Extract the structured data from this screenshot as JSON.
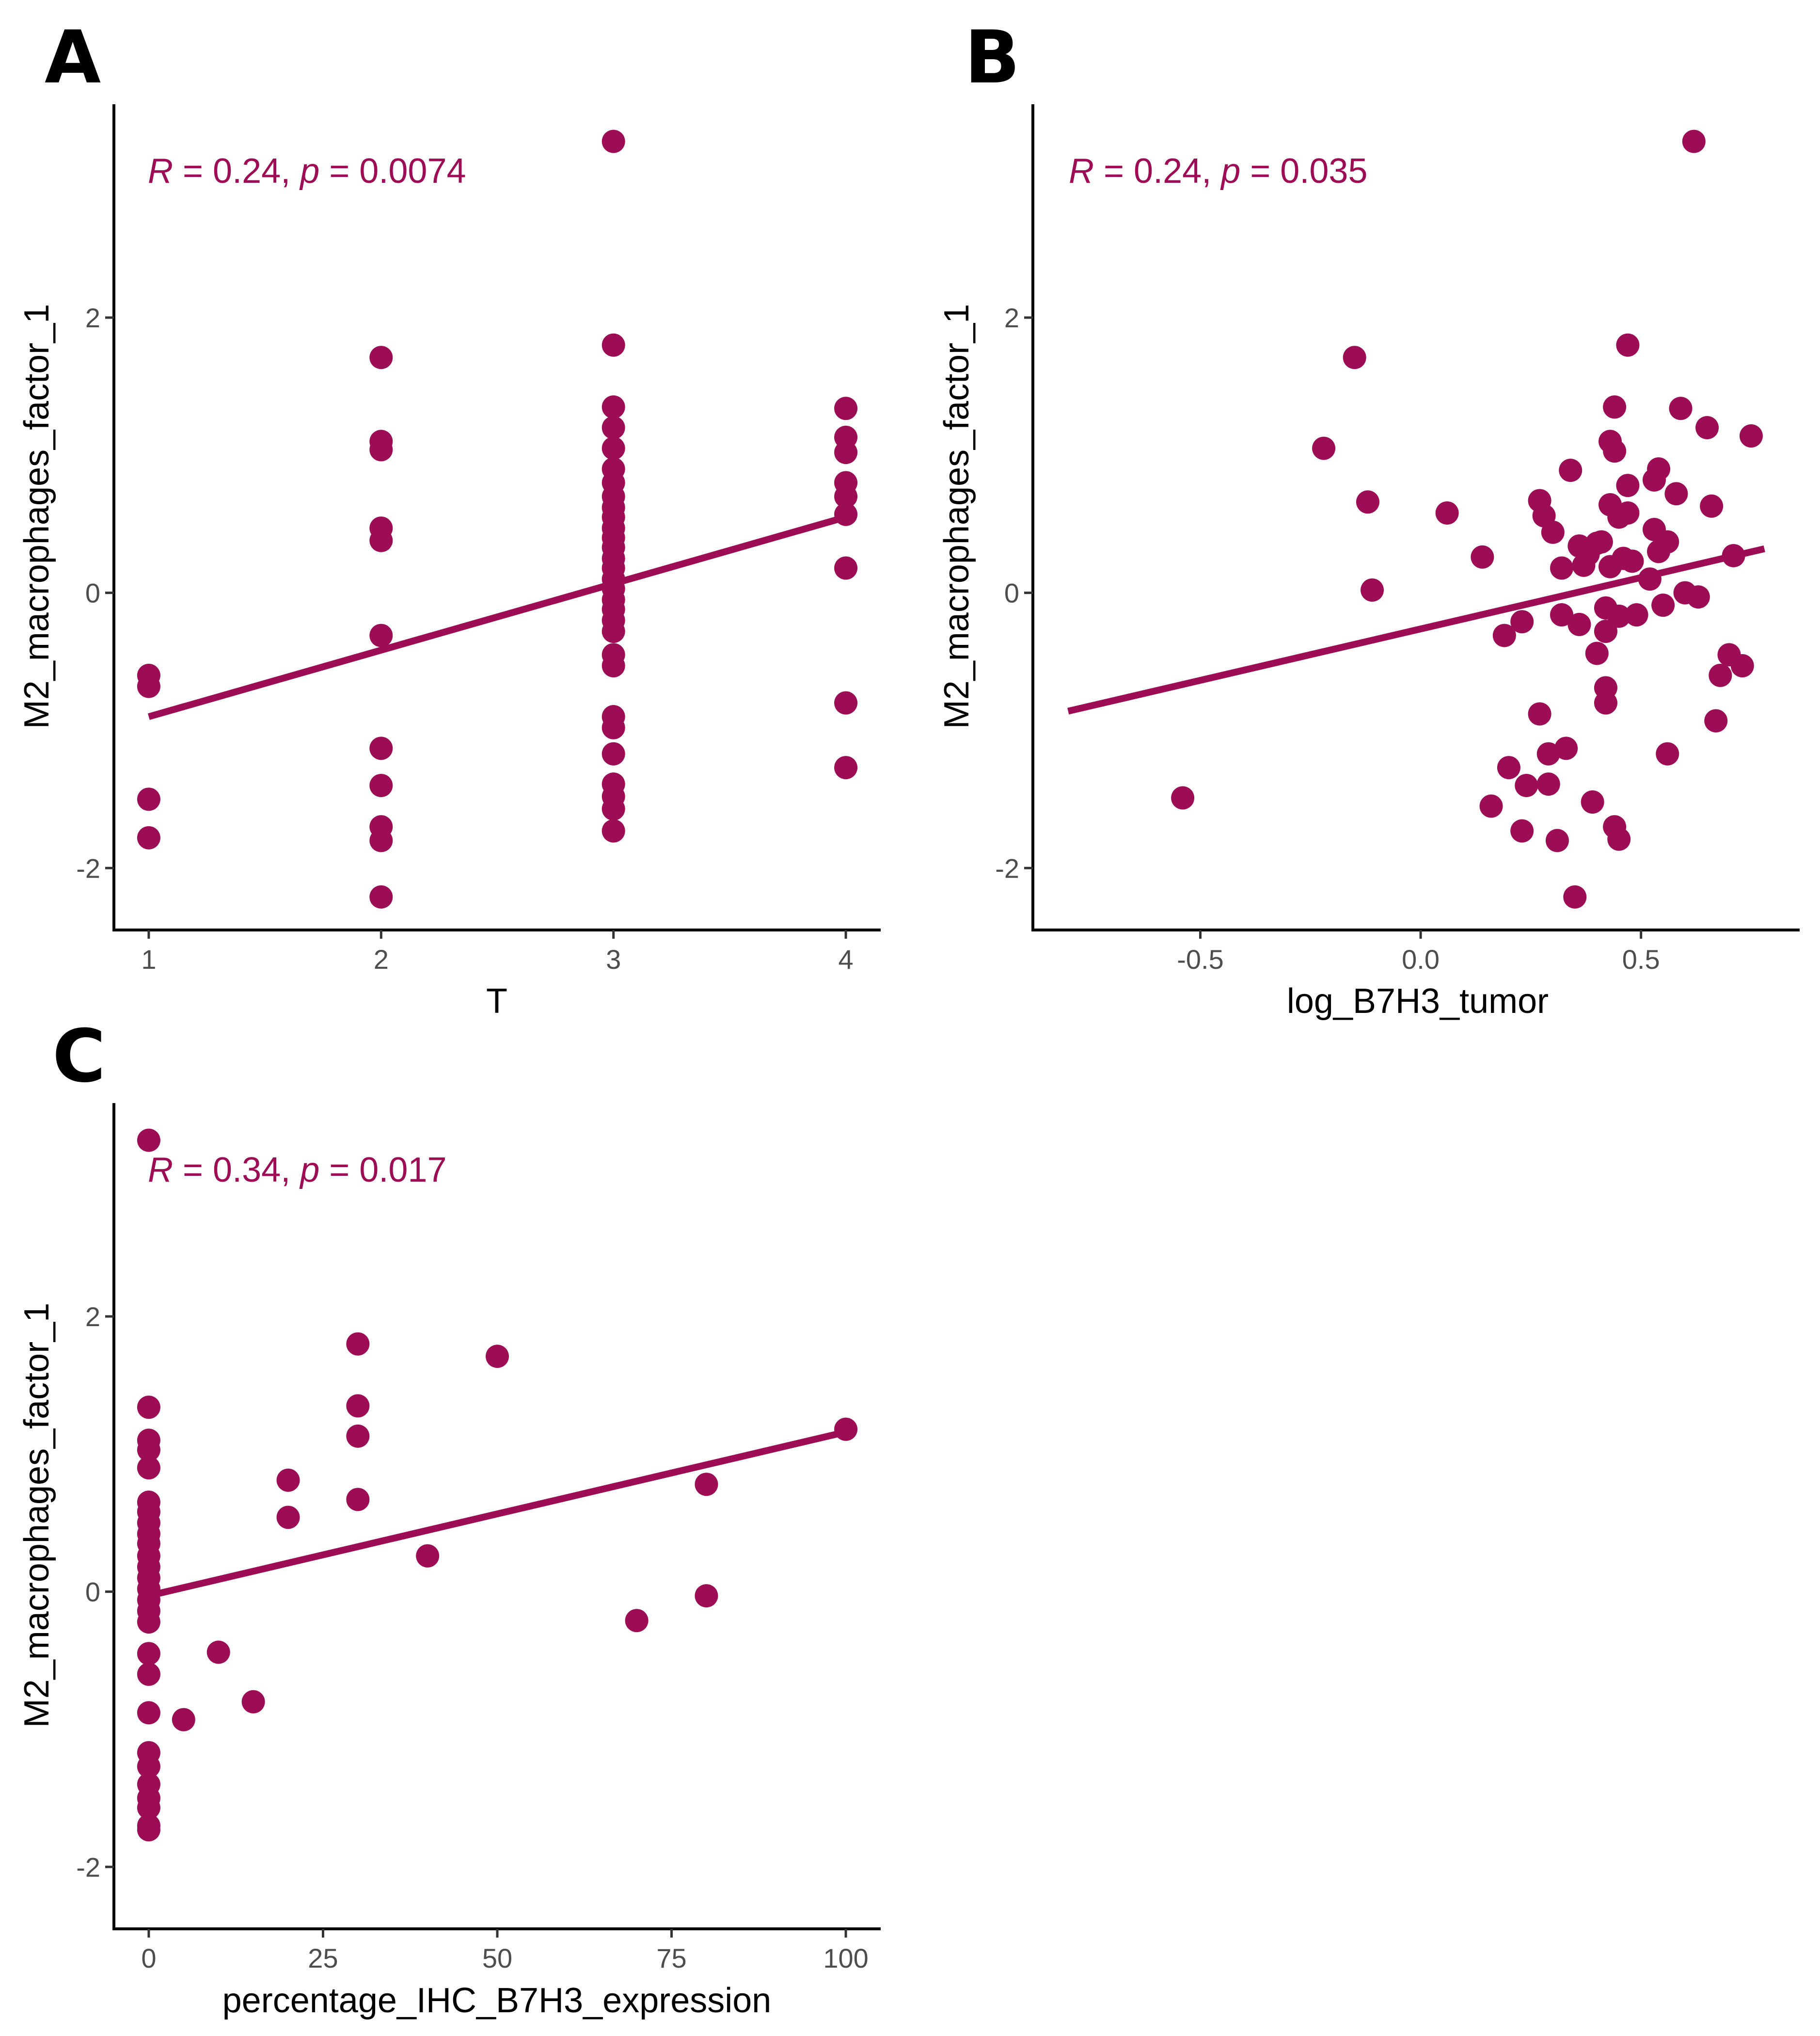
{
  "colors": {
    "accent": "#9c0d55",
    "axis": "#000000",
    "tick_text": "#4d4d4d"
  },
  "chart_data": [
    {
      "panel": "A",
      "type": "scatter",
      "xlabel": "T",
      "ylabel": "M2_macrophages_factor_1",
      "xlim": [
        0.85,
        4.15
      ],
      "ylim": [
        -2.45,
        3.55
      ],
      "xticks": [
        1,
        2,
        3,
        4
      ],
      "xtick_labels": [
        "1",
        "2",
        "3",
        "4"
      ],
      "yticks": [
        -2,
        0,
        2
      ],
      "ytick_labels": [
        "-2",
        "0",
        "2"
      ],
      "stat": {
        "r_sym": "R",
        "r_text": " = 0.24, ",
        "p_sym": "p",
        "p_text": " = 0.0074"
      },
      "fit": {
        "x": [
          1,
          4
        ],
        "y": [
          -0.9,
          0.55
        ]
      },
      "points": [
        [
          1,
          -0.6
        ],
        [
          1,
          -0.68
        ],
        [
          1,
          -1.5
        ],
        [
          1,
          -1.78
        ],
        [
          2,
          1.71
        ],
        [
          2,
          1.1
        ],
        [
          2,
          1.04
        ],
        [
          2,
          0.47
        ],
        [
          2,
          0.38
        ],
        [
          2,
          -0.31
        ],
        [
          2,
          -1.13
        ],
        [
          2,
          -1.4
        ],
        [
          2,
          -1.7
        ],
        [
          2,
          -1.8
        ],
        [
          2,
          -2.21
        ],
        [
          3,
          3.28
        ],
        [
          3,
          1.8
        ],
        [
          3,
          1.35
        ],
        [
          3,
          1.2
        ],
        [
          3,
          1.05
        ],
        [
          3,
          0.9
        ],
        [
          3,
          0.8
        ],
        [
          3,
          0.7
        ],
        [
          3,
          0.62
        ],
        [
          3,
          0.55
        ],
        [
          3,
          0.47
        ],
        [
          3,
          0.4
        ],
        [
          3,
          0.33
        ],
        [
          3,
          0.25
        ],
        [
          3,
          0.18
        ],
        [
          3,
          0.1
        ],
        [
          3,
          0.03
        ],
        [
          3,
          -0.05
        ],
        [
          3,
          -0.12
        ],
        [
          3,
          -0.2
        ],
        [
          3,
          -0.28
        ],
        [
          3,
          -0.45
        ],
        [
          3,
          -0.53
        ],
        [
          3,
          -0.9
        ],
        [
          3,
          -0.98
        ],
        [
          3,
          -1.17
        ],
        [
          3,
          -1.39
        ],
        [
          3,
          -1.48
        ],
        [
          3,
          -1.57
        ],
        [
          3,
          -1.73
        ],
        [
          4,
          1.34
        ],
        [
          4,
          1.13
        ],
        [
          4,
          1.02
        ],
        [
          4,
          0.8
        ],
        [
          4,
          0.7
        ],
        [
          4,
          0.57
        ],
        [
          4,
          0.18
        ],
        [
          4,
          -0.8
        ],
        [
          4,
          -1.27
        ]
      ]
    },
    {
      "panel": "B",
      "type": "scatter",
      "xlabel": "log_B7H3_tumor",
      "ylabel": "M2_macrophages_factor_1",
      "xlim": [
        -0.88,
        0.86
      ],
      "ylim": [
        -2.45,
        3.55
      ],
      "xticks": [
        -0.5,
        0,
        0.5
      ],
      "xtick_labels": [
        "-0.5",
        "0.0",
        "0.5"
      ],
      "yticks": [
        -2,
        0,
        2
      ],
      "ytick_labels": [
        "-2",
        "0",
        "2"
      ],
      "stat": {
        "r_sym": "R",
        "r_text": " = 0.24, ",
        "p_sym": "p",
        "p_text": " = 0.035"
      },
      "fit": {
        "x": [
          -0.8,
          0.78
        ],
        "y": [
          -0.86,
          0.32
        ]
      },
      "points": [
        [
          -0.54,
          -1.49
        ],
        [
          -0.22,
          1.05
        ],
        [
          -0.15,
          1.71
        ],
        [
          -0.12,
          0.66
        ],
        [
          -0.11,
          0.02
        ],
        [
          0.06,
          0.58
        ],
        [
          0.14,
          0.26
        ],
        [
          0.16,
          -1.55
        ],
        [
          0.19,
          -0.31
        ],
        [
          0.2,
          -1.27
        ],
        [
          0.23,
          -0.21
        ],
        [
          0.23,
          -1.73
        ],
        [
          0.24,
          -1.4
        ],
        [
          0.27,
          0.67
        ],
        [
          0.27,
          -0.88
        ],
        [
          0.28,
          0.56
        ],
        [
          0.29,
          -1.39
        ],
        [
          0.29,
          -1.17
        ],
        [
          0.3,
          0.44
        ],
        [
          0.31,
          -1.8
        ],
        [
          0.32,
          0.18
        ],
        [
          0.32,
          -0.16
        ],
        [
          0.33,
          -1.13
        ],
        [
          0.34,
          0.89
        ],
        [
          0.35,
          -2.21
        ],
        [
          0.36,
          0.34
        ],
        [
          0.36,
          -0.23
        ],
        [
          0.37,
          0.2
        ],
        [
          0.38,
          0.28
        ],
        [
          0.39,
          -1.52
        ],
        [
          0.4,
          0.36
        ],
        [
          0.4,
          -0.44
        ],
        [
          0.41,
          0.37
        ],
        [
          0.42,
          -0.28
        ],
        [
          0.42,
          -0.11
        ],
        [
          0.42,
          -0.69
        ],
        [
          0.42,
          -0.8
        ],
        [
          0.43,
          1.1
        ],
        [
          0.43,
          0.64
        ],
        [
          0.43,
          0.19
        ],
        [
          0.44,
          1.35
        ],
        [
          0.44,
          1.03
        ],
        [
          0.44,
          -1.7
        ],
        [
          0.45,
          -0.17
        ],
        [
          0.45,
          0.55
        ],
        [
          0.45,
          -1.79
        ],
        [
          0.46,
          0.25
        ],
        [
          0.47,
          0.58
        ],
        [
          0.47,
          0.78
        ],
        [
          0.47,
          1.8
        ],
        [
          0.48,
          0.23
        ],
        [
          0.49,
          -0.16
        ],
        [
          0.52,
          0.1
        ],
        [
          0.53,
          0.46
        ],
        [
          0.53,
          0.82
        ],
        [
          0.54,
          0.3
        ],
        [
          0.54,
          0.9
        ],
        [
          0.55,
          -0.09
        ],
        [
          0.56,
          0.37
        ],
        [
          0.56,
          -1.17
        ],
        [
          0.58,
          0.72
        ],
        [
          0.59,
          1.34
        ],
        [
          0.6,
          0.0
        ],
        [
          0.62,
          3.28
        ],
        [
          0.63,
          -0.03
        ],
        [
          0.65,
          1.2
        ],
        [
          0.66,
          0.63
        ],
        [
          0.67,
          -0.93
        ],
        [
          0.68,
          -0.6
        ],
        [
          0.7,
          -0.45
        ],
        [
          0.71,
          0.27
        ],
        [
          0.73,
          -0.53
        ],
        [
          0.75,
          1.14
        ]
      ]
    },
    {
      "panel": "C",
      "type": "scatter",
      "xlabel": "percentage_IHC_B7H3_expression",
      "ylabel": "M2_macrophages_factor_1",
      "xlim": [
        -5,
        105
      ],
      "ylim": [
        -2.45,
        3.55
      ],
      "xticks": [
        0,
        25,
        50,
        75,
        100
      ],
      "xtick_labels": [
        "0",
        "25",
        "50",
        "75",
        "100"
      ],
      "yticks": [
        -2,
        0,
        2
      ],
      "ytick_labels": [
        "-2",
        "0",
        "2"
      ],
      "stat": {
        "r_sym": "R",
        "r_text": " = 0.34, ",
        "p_sym": "p",
        "p_text": " = 0.017"
      },
      "fit": {
        "x": [
          0,
          100
        ],
        "y": [
          -0.03,
          1.16
        ]
      },
      "points": [
        [
          0,
          3.28
        ],
        [
          0,
          1.34
        ],
        [
          0,
          1.1
        ],
        [
          0,
          1.03
        ],
        [
          0,
          0.9
        ],
        [
          0,
          0.65
        ],
        [
          0,
          0.58
        ],
        [
          0,
          0.5
        ],
        [
          0,
          0.42
        ],
        [
          0,
          0.35
        ],
        [
          0,
          0.26
        ],
        [
          0,
          0.18
        ],
        [
          0,
          0.1
        ],
        [
          0,
          0.02
        ],
        [
          0,
          -0.06
        ],
        [
          0,
          -0.14
        ],
        [
          0,
          -0.22
        ],
        [
          0,
          -0.45
        ],
        [
          0,
          -0.6
        ],
        [
          0,
          -0.88
        ],
        [
          0,
          -1.17
        ],
        [
          0,
          -1.27
        ],
        [
          0,
          -1.4
        ],
        [
          0,
          -1.5
        ],
        [
          0,
          -1.57
        ],
        [
          0,
          -1.7
        ],
        [
          0,
          -1.73
        ],
        [
          5,
          -0.93
        ],
        [
          10,
          -0.44
        ],
        [
          15,
          -0.8
        ],
        [
          20,
          0.81
        ],
        [
          20,
          0.54
        ],
        [
          30,
          1.8
        ],
        [
          30,
          1.35
        ],
        [
          30,
          1.13
        ],
        [
          30,
          0.67
        ],
        [
          40,
          0.26
        ],
        [
          50,
          1.71
        ],
        [
          70,
          -0.21
        ],
        [
          80,
          0.78
        ],
        [
          80,
          -0.03
        ],
        [
          100,
          1.18
        ]
      ]
    }
  ]
}
